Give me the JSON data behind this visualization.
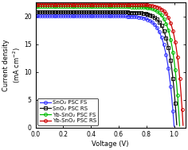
{
  "title": "",
  "xlabel": "Voltage (V)",
  "ylabel": "Current density\n(mA cm$^{-2}$)",
  "xlim": [
    0.0,
    1.08
  ],
  "ylim": [
    0,
    22.5
  ],
  "yticks": [
    0,
    5,
    10,
    15,
    20
  ],
  "xticks": [
    0.0,
    0.2,
    0.4,
    0.6,
    0.8,
    1.0
  ],
  "series": [
    {
      "label": "SnO₂ PSC FS",
      "color": "#3333ff",
      "Jsc": 20.1,
      "Voc": 1.0,
      "nVt": 0.055,
      "marker": "o"
    },
    {
      "label": "SnO₂ PSC RS",
      "color": "#111111",
      "Jsc": 20.8,
      "Voc": 1.02,
      "nVt": 0.052,
      "marker": "s"
    },
    {
      "label": "Yb-SnO₂ PSC FS",
      "color": "#00bb00",
      "Jsc": 21.8,
      "Voc": 1.04,
      "nVt": 0.05,
      "marker": "o"
    },
    {
      "label": "Yb-SnO₂ PSC RS",
      "color": "#cc0000",
      "Jsc": 22.2,
      "Voc": 1.065,
      "nVt": 0.048,
      "marker": "o"
    }
  ],
  "background_color": "#ffffff",
  "marker_size": 2.8,
  "marker_every": 12,
  "linewidth": 0.9,
  "legend_fontsize": 5.0,
  "tick_fontsize": 5.5,
  "label_fontsize": 6.0
}
